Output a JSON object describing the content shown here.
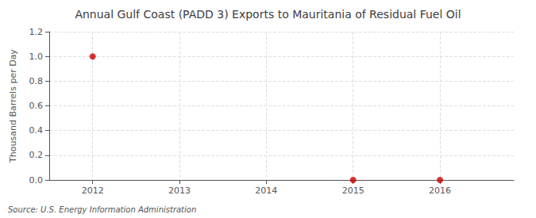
{
  "chart_data": {
    "type": "scatter",
    "title": "Annual Gulf Coast (PADD 3) Exports to Mauritania of Residual Fuel Oil",
    "ylabel": "Thousand Barrels per Day",
    "source": "Source: U.S. Energy Information Administration",
    "x": [
      2012,
      2015,
      2016
    ],
    "values": [
      1.0,
      0.0,
      0.0
    ],
    "color": "#CC0000",
    "marker": "circle",
    "xlim": [
      2011.5,
      2016.85
    ],
    "ylim": [
      0.0,
      1.2
    ],
    "xticks": [
      2012,
      2013,
      2014,
      2015,
      2016
    ],
    "yticks": [
      {
        "value": 0.0,
        "label": "0.0"
      },
      0.2,
      0.4,
      0.6,
      0.8,
      {
        "value": 1.0,
        "label": "1.0"
      },
      1.2
    ],
    "grid": true
  }
}
